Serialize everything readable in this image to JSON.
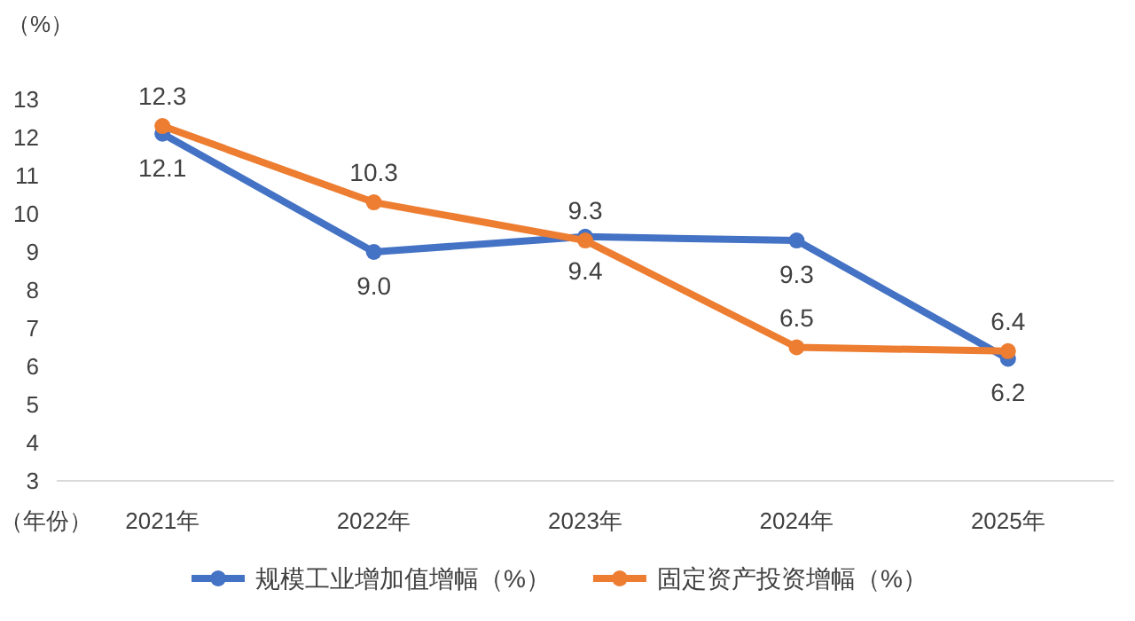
{
  "chart_data": {
    "type": "line",
    "ylabel": "（%）",
    "xlabel": "（年份）",
    "categories": [
      "2021年",
      "2022年",
      "2023年",
      "2024年",
      "2025年"
    ],
    "series": [
      {
        "name": "规模工业增加值增幅（%）",
        "color": "#4472c4",
        "values": [
          12.1,
          9.0,
          9.4,
          9.3,
          6.2
        ],
        "value_labels": [
          "12.1",
          "9.0",
          "9.4",
          "9.3",
          "6.2"
        ]
      },
      {
        "name": "固定资产投资增幅（%）",
        "color": "#ed7d31",
        "values": [
          12.3,
          10.3,
          9.3,
          6.5,
          6.4
        ],
        "value_labels": [
          "12.3",
          "10.3",
          "9.3",
          "6.5",
          "6.4"
        ]
      }
    ],
    "ylim": [
      3,
      13
    ],
    "yticks": [
      3,
      4,
      5,
      6,
      7,
      8,
      9,
      10,
      11,
      12,
      13
    ],
    "legend": "bottom",
    "marker": "circle",
    "grid": false
  }
}
